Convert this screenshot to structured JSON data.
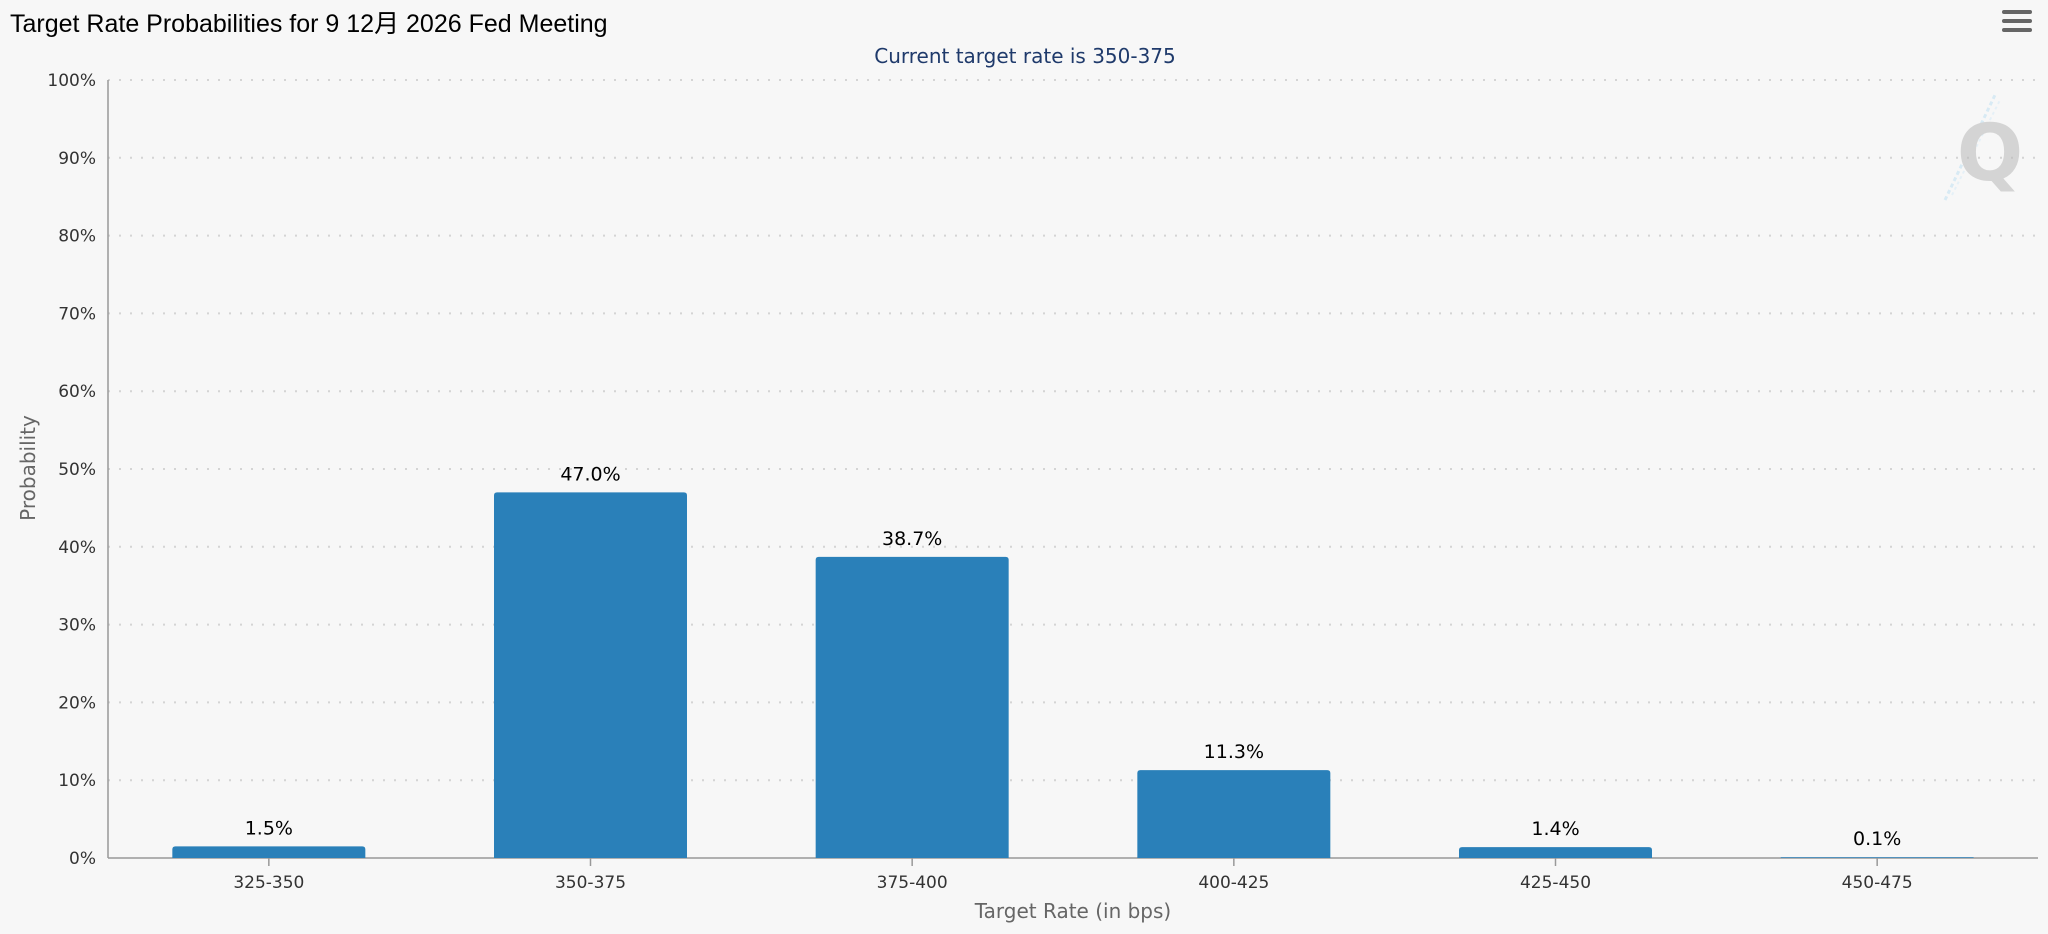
{
  "page": {
    "title": "Target Rate Probabilities for 9 12月 2026 Fed Meeting",
    "menu_icon": "hamburger-menu-icon",
    "watermark_icon": "q-logo-watermark"
  },
  "chart_data": {
    "type": "bar",
    "title": "Target Rate Probabilities for 9 12月 2026 Fed Meeting",
    "subtitle": "Current target rate is 350-375",
    "xlabel": "Target Rate (in bps)",
    "ylabel": "Probability",
    "categories": [
      "325-350",
      "350-375",
      "375-400",
      "400-425",
      "425-450",
      "450-475"
    ],
    "values": [
      1.5,
      47.0,
      38.7,
      11.3,
      1.4,
      0.1
    ],
    "value_labels": [
      "1.5%",
      "47.0%",
      "38.7%",
      "11.3%",
      "1.4%",
      "0.1%"
    ],
    "ylim": [
      0,
      100
    ],
    "yticks": [
      "0%",
      "10%",
      "20%",
      "30%",
      "40%",
      "50%",
      "60%",
      "70%",
      "80%",
      "90%",
      "100%"
    ],
    "grid": true,
    "legend": "none",
    "colors": {
      "bar": "#2a80b9",
      "grid": "#d4d4d4",
      "axis": "#999999",
      "subtitle": "#1f3a6b"
    }
  }
}
